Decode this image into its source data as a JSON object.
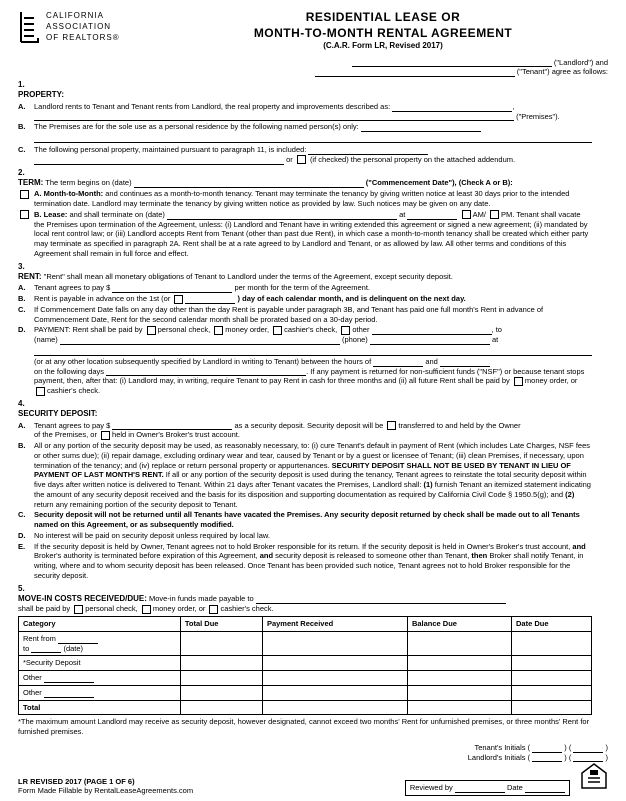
{
  "org": {
    "line1": "CALIFORNIA",
    "line2": "ASSOCIATION",
    "line3": "OF REALTORS®"
  },
  "title": {
    "line1": "RESIDENTIAL LEASE OR",
    "line2": "MONTH-TO-MONTH RENTAL AGREEMENT",
    "sub": "(C.A.R. Form LR, Revised 2017)"
  },
  "top": {
    "landlord": "(\"Landlord\") and",
    "tenant": "(\"Tenant\") agree as follows:"
  },
  "s1": {
    "title": "PROPERTY:",
    "a": "Landlord rents to Tenant and Tenant rents from Landlord, the real property and improvements described as:",
    "a_end": "(\"Premises\").",
    "b": "The Premises are for the sole use as a personal residence by the following named person(s) only:",
    "c": "The following personal property, maintained pursuant to paragraph 11, is included:",
    "c_end": "(if checked) the personal property on the attached addendum."
  },
  "s2": {
    "title": "TERM:",
    "intro": "The term begins on (date)",
    "intro_end": "(\"Commencement Date\"), (Check A or B):",
    "a_title": "Month-to-Month:",
    "a": "and continues as a month-to-month tenancy. Tenant may terminate the tenancy by giving written notice at least 30 days prior to the intended termination date. Landlord may terminate the tenancy by giving written notice as provided by law. Such notices may be given on any date.",
    "b_title": "Lease:",
    "b1": "and shall terminate on (date)",
    "b_at": "at",
    "b_ampm_am": "AM/",
    "b_ampm_pm": "PM.",
    "b2": "Tenant shall vacate the Premises upon termination of the Agreement, unless: (i) Landlord and Tenant have in writing extended this agreement or signed a new agreement; (ii) mandated by local rent control law; or (iii) Landlord accepts Rent from Tenant (other than past due Rent), in which case a month-to-month tenancy shall be created which either party may terminate as specified in paragraph 2A. Rent shall be at a rate agreed to by Landlord and Tenant, or as allowed by law. All other terms and conditions of this Agreement shall remain in full force and effect."
  },
  "s3": {
    "title": "RENT:",
    "intro": "\"Rent\" shall mean all monetary obligations of Tenant to Landlord under the terms of the Agreement, except security deposit.",
    "a": "Tenant agrees to pay $",
    "a_end": "per month for the term of the Agreement.",
    "b": "Rent is payable in advance on the 1st (or",
    "b_end": ") day of each calendar month, and is delinquent on the next day.",
    "c": "If Commencement Date falls on any day other than the day Rent is payable under paragraph 3B, and Tenant has paid one full month's Rent in advance of Commencement Date, Rent for the second calendar month shall be prorated based on a 30-day period.",
    "d": "PAYMENT: Rent shall be paid by",
    "d_pc": "personal check,",
    "d_mo": "money order,",
    "d_cc": "cashier's check,",
    "d_ot": "other",
    "d_to": ", to",
    "d_name": "(name)",
    "d_phone": "(phone)",
    "d_at": "at",
    "d2": "(or at any other location subsequently specified by Landlord in writing to Tenant) between the hours of",
    "d_and": "and",
    "d_days": "on the following days",
    "d3": ". If any payment is returned for non-sufficient funds (\"NSF\") or because tenant stops payment, then, after that: (i) Landlord may, in writing, require Tenant to pay Rent in cash for three months and (ii) all future Rent shall be paid by",
    "d_mo2": "money order, or",
    "d_cc2": "cashier's check."
  },
  "s4": {
    "title": "SECURITY DEPOSIT:",
    "a": "Tenant agrees to pay $",
    "a_mid": "as a security deposit. Security deposit will be",
    "a_opt1": "transferred to and held by the Owner",
    "a_line2": "of the Premises, or",
    "a_opt2": "held in Owner's Broker's trust account.",
    "b": "All or any portion of the security deposit may be used, as reasonably necessary, to: (i) cure Tenant's default in payment of Rent (which includes Late Charges, NSF fees or other sums due); (ii) repair damage, excluding ordinary wear and tear, caused by Tenant or by a guest or licensee of Tenant; (iii) clean Premises, if necessary, upon termination of the tenancy; and (iv) replace or return personal property or appurtenances. SECURITY DEPOSIT SHALL NOT BE USED BY TENANT IN LIEU OF PAYMENT OF LAST MONTH'S RENT. If all or any portion of the security deposit is used during the tenancy, Tenant agrees to reinstate the total security deposit within five days after written notice is delivered to Tenant. Within 21 days after Tenant vacates the Premises, Landlord shall: (1) furnish Tenant an itemized statement indicating the amount of any security deposit received and the basis for its disposition and supporting documentation as required by California Civil Code § 1950.5(g); and (2) return any remaining portion of the security deposit to Tenant.",
    "c": "Security deposit will not be returned until all Tenants have vacated the Premises. Any security deposit returned by check shall be made out to all Tenants named on this Agreement, or as subsequently modified.",
    "d": "No interest will be paid on security deposit unless required by local law.",
    "e": "If the security deposit is held by Owner, Tenant agrees not to hold Broker responsible for its return. If the security deposit is held in Owner's Broker's trust account, and Broker's authority is terminated before expiration of this Agreement, and security deposit is released to someone other than Tenant, then Broker shall notify Tenant, in writing, where and to whom security deposit has been released. Once Tenant has been provided such notice, Tenant agrees not to hold Broker responsible for the security deposit."
  },
  "s5": {
    "title": "MOVE-IN COSTS RECEIVED/DUE:",
    "intro": "Move-in funds made payable to",
    "paid": "shall be paid by",
    "pc": "personal check,",
    "mo": "money order, or",
    "cc": "cashier's check.",
    "cols": {
      "cat": "Category",
      "td": "Total Due",
      "pr": "Payment Received",
      "bd": "Balance Due",
      "dd": "Date Due"
    },
    "rows": {
      "rent": "Rent from",
      "to": "to",
      "date": "(date)",
      "sd": "*Security Deposit",
      "o1": "Other",
      "o2": "Other",
      "tot": "Total"
    },
    "note": "*The maximum amount Landlord may receive as security deposit, however designated, cannot exceed two months' Rent for unfurnished premises, or three months' Rent for furnished premises."
  },
  "footer": {
    "ti": "Tenant's Initials (",
    "li": "Landlord's Initials (",
    "close": ")",
    "rev": "LR REVISED 2017 (PAGE 1 OF 6)",
    "made": "Form Made Fillable by RentalLeaseAgreements.com",
    "reviewed": "Reviewed by",
    "date": "Date"
  }
}
